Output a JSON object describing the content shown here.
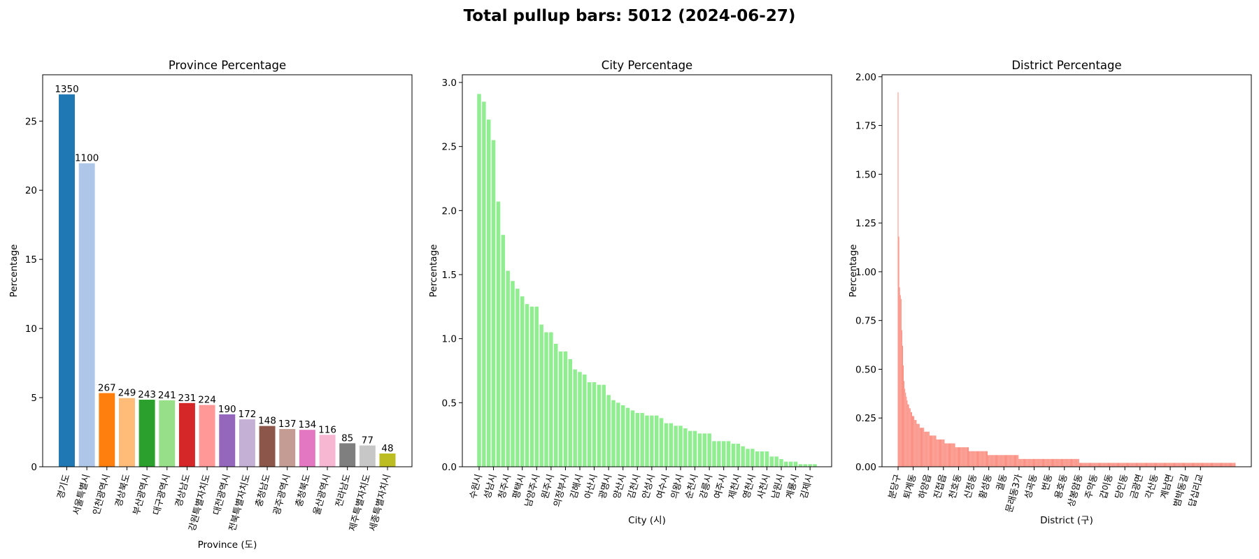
{
  "figure": {
    "title": "Total pullup bars: 5012 (2024-06-27)"
  },
  "chart_data": [
    {
      "type": "bar",
      "title": "Province Percentage",
      "xlabel": "Province (도)",
      "ylabel": "Percentage",
      "ylim": [
        0,
        28.35
      ],
      "yticks": [
        0,
        5,
        10,
        15,
        20,
        25
      ],
      "categories": [
        "경기도",
        "서울특별시",
        "인천광역시",
        "경상북도",
        "부산광역시",
        "대구광역시",
        "경상남도",
        "강원특별자치도",
        "대전광역시",
        "전북특별자치도",
        "충청남도",
        "광주광역시",
        "충청북도",
        "울산광역시",
        "전라남도",
        "제주특별자치도",
        "세종특별자치시"
      ],
      "counts": [
        1350,
        1100,
        267,
        249,
        243,
        241,
        231,
        224,
        190,
        172,
        148,
        137,
        134,
        116,
        85,
        77,
        48
      ],
      "values": [
        26.93,
        21.95,
        5.33,
        4.97,
        4.85,
        4.81,
        4.61,
        4.47,
        3.79,
        3.43,
        2.95,
        2.73,
        2.67,
        2.31,
        1.7,
        1.54,
        0.96
      ],
      "colors": [
        "#1f77b4",
        "#aec7e8",
        "#ff7f0e",
        "#ffbb78",
        "#2ca02c",
        "#98df8a",
        "#d62728",
        "#ff9896",
        "#9467bd",
        "#c5b0d5",
        "#8c564b",
        "#c49c94",
        "#e377c2",
        "#f7b6d2",
        "#7f7f7f",
        "#c7c7c7",
        "#bcbd22"
      ]
    },
    {
      "type": "bar",
      "title": "City Percentage",
      "xlabel": "City (시)",
      "ylabel": "Percentage",
      "ylim": [
        0,
        3.06
      ],
      "yticks": [
        0.0,
        0.5,
        1.0,
        1.5,
        2.0,
        2.5,
        3.0
      ],
      "color": "#90ee90",
      "tick_labels": [
        "수원시",
        "성남시",
        "청주시",
        "평택시",
        "남양주시",
        "원주시",
        "의정부시",
        "김해시",
        "아산시",
        "광명시",
        "양산시",
        "김천시",
        "안성시",
        "여수시",
        "의왕시",
        "순천시",
        "강릉시",
        "여주시",
        "제천시",
        "영천시",
        "사천시",
        "남원시",
        "계룡시",
        "김제시"
      ],
      "values": [
        2.91,
        2.85,
        2.71,
        2.55,
        2.07,
        1.81,
        1.53,
        1.45,
        1.39,
        1.33,
        1.27,
        1.25,
        1.25,
        1.11,
        1.05,
        1.05,
        0.96,
        0.9,
        0.9,
        0.84,
        0.76,
        0.74,
        0.72,
        0.66,
        0.66,
        0.64,
        0.64,
        0.56,
        0.52,
        0.5,
        0.48,
        0.46,
        0.44,
        0.42,
        0.42,
        0.4,
        0.4,
        0.4,
        0.38,
        0.34,
        0.34,
        0.32,
        0.32,
        0.3,
        0.28,
        0.28,
        0.26,
        0.26,
        0.26,
        0.2,
        0.2,
        0.2,
        0.2,
        0.18,
        0.18,
        0.16,
        0.14,
        0.14,
        0.12,
        0.12,
        0.12,
        0.08,
        0.08,
        0.06,
        0.04,
        0.04,
        0.04,
        0.02,
        0.02,
        0.02,
        0.02
      ]
    },
    {
      "type": "bar",
      "title": "District Percentage",
      "xlabel": "District (구)",
      "ylabel": "Percentage",
      "ylim": [
        0,
        2.01
      ],
      "yticks": [
        0.0,
        0.25,
        0.5,
        0.75,
        1.0,
        1.25,
        1.5,
        1.75,
        2.0
      ],
      "color": "#fa8072",
      "tick_labels": [
        "분당구",
        "퇴계동",
        "하양읍",
        "진접읍",
        "천호동",
        "신정동",
        "황성동",
        "궐동",
        "문래동3가",
        "성곡동",
        "번동",
        "용호동",
        "상봉암동",
        "주약동",
        "갑이동",
        "당인동",
        "금광면",
        "각산동",
        "계남면",
        "범박동길",
        "답십리교"
      ],
      "values": [
        1.92,
        1.18,
        0.92,
        0.88,
        0.86,
        0.7,
        0.62,
        0.52,
        0.44,
        0.4,
        0.38,
        0.36,
        0.34,
        0.32,
        0.32,
        0.3,
        0.3,
        0.28,
        0.28,
        0.26,
        0.26,
        0.26,
        0.24,
        0.24,
        0.24,
        0.22,
        0.22,
        0.22,
        0.22,
        0.2,
        0.2,
        0.2,
        0.2,
        0.2,
        0.2,
        0.18,
        0.18,
        0.18,
        0.18,
        0.18,
        0.18,
        0.18,
        0.16,
        0.16,
        0.16,
        0.16,
        0.16,
        0.16,
        0.16,
        0.16,
        0.16,
        0.14,
        0.14,
        0.14,
        0.14,
        0.14,
        0.14,
        0.14,
        0.14,
        0.14,
        0.14,
        0.14,
        0.12,
        0.12,
        0.12,
        0.12,
        0.12,
        0.12,
        0.12,
        0.12,
        0.12,
        0.12,
        0.12,
        0.12,
        0.12,
        0.12,
        0.1,
        0.1,
        0.1,
        0.1,
        0.1,
        0.1,
        0.1,
        0.1,
        0.1,
        0.1,
        0.1,
        0.1,
        0.1,
        0.1,
        0.1,
        0.1,
        0.1,
        0.1,
        0.08,
        0.08,
        0.08,
        0.08,
        0.08,
        0.08,
        0.08,
        0.08,
        0.08,
        0.08,
        0.08,
        0.08,
        0.08,
        0.08,
        0.08,
        0.08,
        0.08,
        0.08,
        0.08,
        0.08,
        0.08,
        0.08,
        0.08,
        0.08,
        0.08,
        0.06,
        0.06,
        0.06,
        0.06,
        0.06,
        0.06,
        0.06,
        0.06,
        0.06,
        0.06,
        0.06,
        0.06,
        0.06,
        0.06,
        0.06,
        0.06,
        0.06,
        0.06,
        0.06,
        0.06,
        0.06,
        0.06,
        0.06,
        0.06,
        0.06,
        0.06,
        0.06,
        0.06,
        0.06,
        0.06,
        0.06,
        0.06,
        0.06,
        0.06,
        0.06,
        0.06,
        0.06,
        0.06,
        0.06,
        0.06,
        0.06,
        0.04,
        0.04,
        0.04,
        0.04,
        0.04,
        0.04,
        0.04,
        0.04,
        0.04,
        0.04,
        0.04,
        0.04,
        0.04,
        0.04,
        0.04,
        0.04,
        0.04,
        0.04,
        0.04,
        0.04,
        0.04,
        0.04,
        0.04,
        0.04,
        0.04,
        0.04,
        0.04,
        0.04,
        0.04,
        0.04,
        0.04,
        0.04,
        0.04,
        0.04,
        0.04,
        0.04,
        0.04,
        0.04,
        0.04,
        0.04,
        0.04,
        0.04,
        0.04,
        0.04,
        0.04,
        0.04,
        0.04,
        0.04,
        0.04,
        0.04,
        0.04,
        0.04,
        0.04,
        0.04,
        0.04,
        0.04,
        0.04,
        0.04,
        0.04,
        0.04,
        0.04,
        0.04,
        0.04,
        0.04,
        0.04,
        0.04,
        0.04,
        0.04,
        0.04,
        0.04,
        0.04,
        0.04,
        0.04,
        0.04,
        0.04,
        0.04,
        0.04,
        0.04,
        0.04,
        0.04,
        0.02,
        0.02,
        0.02,
        0.02,
        0.02,
        0.02,
        0.02,
        0.02,
        0.02,
        0.02,
        0.02,
        0.02,
        0.02,
        0.02,
        0.02,
        0.02,
        0.02,
        0.02,
        0.02,
        0.02,
        0.02,
        0.02,
        0.02,
        0.02,
        0.02,
        0.02,
        0.02,
        0.02,
        0.02,
        0.02,
        0.02,
        0.02,
        0.02,
        0.02,
        0.02,
        0.02,
        0.02,
        0.02,
        0.02,
        0.02,
        0.02,
        0.02,
        0.02,
        0.02,
        0.02,
        0.02,
        0.02,
        0.02,
        0.02,
        0.02,
        0.02,
        0.02,
        0.02,
        0.02,
        0.02,
        0.02,
        0.02,
        0.02,
        0.02,
        0.02,
        0.02,
        0.02,
        0.02,
        0.02,
        0.02,
        0.02,
        0.02,
        0.02,
        0.02,
        0.02,
        0.02,
        0.02,
        0.02,
        0.02,
        0.02,
        0.02,
        0.02,
        0.02,
        0.02,
        0.02,
        0.02,
        0.02,
        0.02,
        0.02,
        0.02,
        0.02,
        0.02,
        0.02,
        0.02,
        0.02,
        0.02,
        0.02,
        0.02,
        0.02,
        0.02,
        0.02,
        0.02,
        0.02,
        0.02,
        0.02,
        0.02,
        0.02,
        0.02,
        0.02,
        0.02,
        0.02,
        0.02,
        0.02,
        0.02,
        0.02,
        0.02,
        0.02,
        0.02,
        0.02,
        0.02,
        0.02,
        0.02,
        0.02,
        0.02,
        0.02,
        0.02,
        0.02,
        0.02,
        0.02,
        0.02,
        0.02,
        0.02,
        0.02,
        0.02,
        0.02,
        0.02,
        0.02,
        0.02,
        0.02,
        0.02,
        0.02,
        0.02,
        0.02,
        0.02,
        0.02,
        0.02,
        0.02,
        0.02,
        0.02,
        0.02,
        0.02,
        0.02,
        0.02,
        0.02,
        0.02,
        0.02,
        0.02,
        0.02,
        0.02,
        0.02,
        0.02,
        0.02,
        0.02,
        0.02,
        0.02,
        0.02,
        0.02,
        0.02,
        0.02,
        0.02,
        0.02,
        0.02,
        0.02,
        0.02,
        0.02,
        0.02,
        0.02,
        0.02,
        0.02,
        0.02,
        0.02,
        0.02,
        0.02,
        0.02,
        0.02,
        0.02,
        0.02,
        0.02,
        0.02,
        0.02,
        0.02,
        0.02,
        0.02,
        0.02,
        0.02,
        0.02,
        0.02,
        0.02,
        0.02,
        0.02,
        0.02,
        0.02,
        0.02,
        0.02,
        0.02,
        0.02,
        0.02,
        0.02,
        0.02,
        0.02,
        0.02,
        0.02
      ]
    }
  ]
}
